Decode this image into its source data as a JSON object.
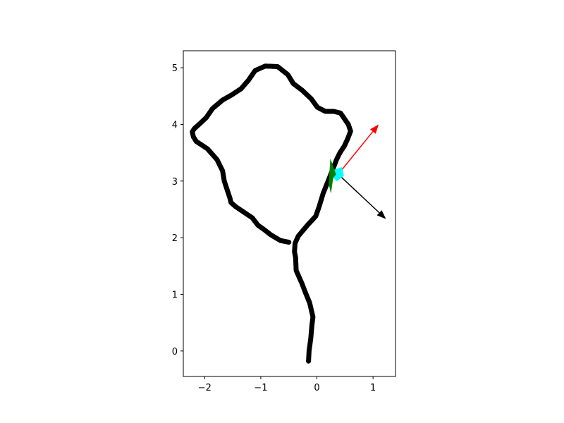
{
  "chart_data": {
    "type": "line",
    "title": "",
    "xlabel": "",
    "ylabel": "",
    "xlim": [
      -2.38,
      1.4
    ],
    "ylim": [
      -0.45,
      5.3
    ],
    "grid": false,
    "legend": "none",
    "x_ticks": [
      {
        "value": -2,
        "label": "−2"
      },
      {
        "value": -1,
        "label": "−1"
      },
      {
        "value": 0,
        "label": "0"
      },
      {
        "value": 1,
        "label": "1"
      }
    ],
    "y_ticks": [
      {
        "value": 0,
        "label": "0"
      },
      {
        "value": 1,
        "label": "1"
      },
      {
        "value": 2,
        "label": "2"
      },
      {
        "value": 3,
        "label": "3"
      },
      {
        "value": 4,
        "label": "4"
      },
      {
        "value": 5,
        "label": "5"
      }
    ],
    "series": [
      {
        "name": "trajectory",
        "color": "#000000",
        "x": [
          -0.15,
          -0.14,
          -0.11,
          -0.09,
          -0.07,
          -0.13,
          -0.2,
          -0.27,
          -0.37,
          -0.38,
          -0.4,
          -0.39,
          -0.33,
          -0.17,
          -0.02,
          0.04,
          0.11,
          0.24,
          0.3,
          0.35,
          0.41,
          0.49,
          0.55,
          0.6,
          0.56,
          0.47,
          0.42,
          0.3,
          0.15,
          0.01,
          -0.1,
          -0.26,
          -0.42,
          -0.52,
          -0.7,
          -0.92,
          -1.1,
          -1.22,
          -1.35,
          -1.52,
          -1.68,
          -1.86,
          -1.97,
          -2.1,
          -2.18,
          -2.22,
          -2.2,
          -2.15,
          -1.95,
          -1.78,
          -1.68,
          -1.65,
          -1.6,
          -1.55,
          -1.53,
          -1.45,
          -1.3,
          -1.15,
          -1.05,
          -0.95,
          -0.82,
          -0.65,
          -0.5
        ],
        "y": [
          -0.18,
          0.0,
          0.22,
          0.45,
          0.6,
          0.85,
          1.02,
          1.2,
          1.42,
          1.65,
          1.75,
          1.9,
          2.03,
          2.22,
          2.38,
          2.55,
          2.78,
          3.1,
          3.25,
          3.38,
          3.5,
          3.62,
          3.75,
          3.88,
          4.0,
          4.13,
          4.2,
          4.23,
          4.23,
          4.3,
          4.45,
          4.6,
          4.72,
          4.88,
          5.02,
          5.03,
          4.95,
          4.78,
          4.63,
          4.52,
          4.43,
          4.28,
          4.12,
          4.0,
          3.93,
          3.87,
          3.78,
          3.7,
          3.57,
          3.38,
          3.18,
          3.0,
          2.85,
          2.7,
          2.62,
          2.55,
          2.45,
          2.35,
          2.22,
          2.15,
          2.05,
          1.95,
          1.92
        ]
      }
    ],
    "annotations": [
      {
        "name": "red-arrow",
        "color": "#ff0000",
        "from": [
          0.38,
          3.12
        ],
        "to": [
          1.1,
          4.0
        ]
      },
      {
        "name": "black-arrow",
        "color": "#000000",
        "from": [
          0.38,
          3.12
        ],
        "to": [
          1.23,
          2.33
        ]
      },
      {
        "name": "cyan-marker",
        "color": "#00ffff",
        "center": [
          0.38,
          3.12
        ]
      },
      {
        "name": "green-marker",
        "color": "#008000",
        "points": [
          [
            0.24,
            3.4
          ],
          [
            0.34,
            3.12
          ],
          [
            0.29,
            3.05
          ],
          [
            0.25,
            2.78
          ],
          [
            0.21,
            2.95
          ]
        ]
      }
    ]
  }
}
